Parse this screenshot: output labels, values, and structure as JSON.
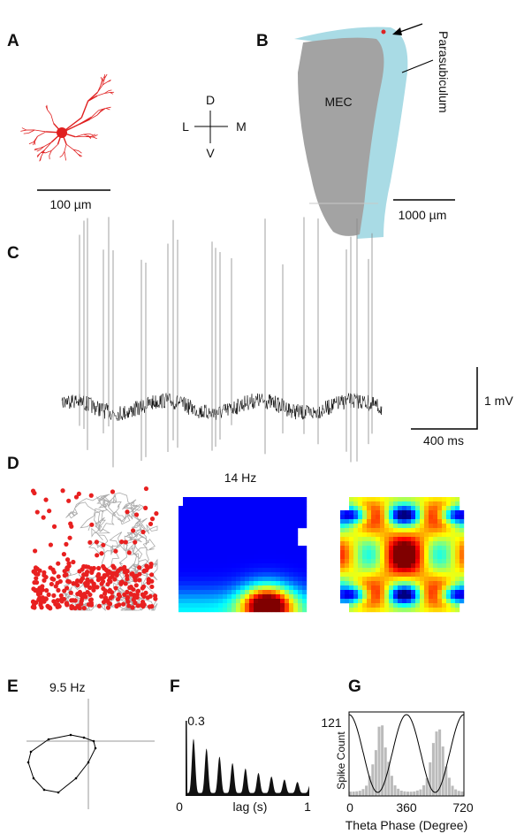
{
  "panels": {
    "A": {
      "label": "A",
      "scale_bar": "100 µm"
    },
    "compass": {
      "dorsal": "D",
      "lateral": "L",
      "medial": "M",
      "ventral": "V"
    },
    "B": {
      "label": "B",
      "region": "MEC",
      "structure": "Parasubiculum",
      "scale_bar": "1000 µm"
    },
    "C": {
      "label": "C",
      "scale_voltage": "1 mV",
      "scale_time": "400 ms"
    },
    "D": {
      "label": "D",
      "frequency": "14 Hz"
    },
    "E": {
      "label": "E",
      "frequency": "9.5 Hz"
    },
    "F": {
      "label": "F",
      "y_max": "0.3",
      "x_min": "0",
      "x_label": "lag (s)",
      "x_max": "1"
    },
    "G": {
      "label": "G",
      "y_max": "121",
      "y_label": "Spike Count",
      "x_ticks": [
        "0",
        "360",
        "720"
      ],
      "x_label": "Theta Phase (Degree)"
    }
  }
}
